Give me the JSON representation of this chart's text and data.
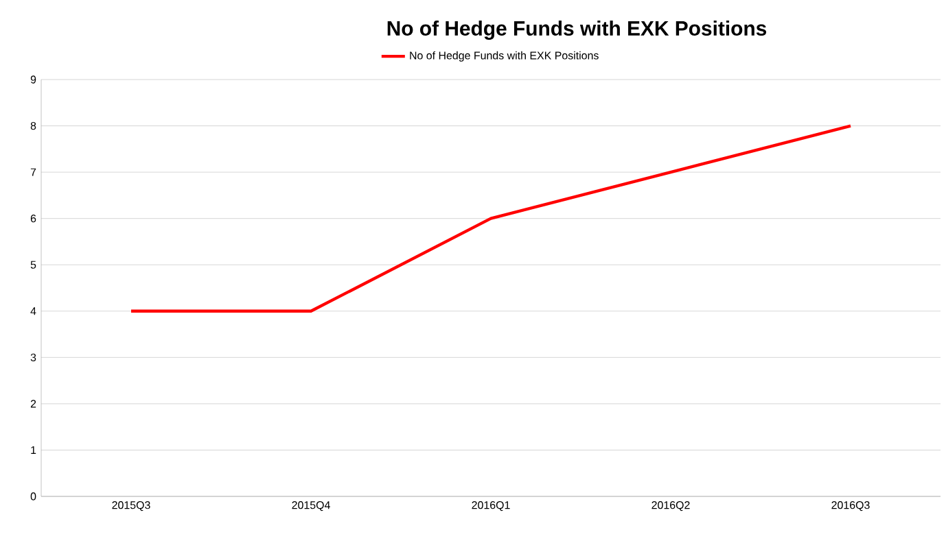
{
  "chart_data": {
    "type": "line",
    "title": "No of Hedge Funds with EXK Positions",
    "categories": [
      "2015Q3",
      "2015Q4",
      "2016Q1",
      "2016Q2",
      "2016Q3"
    ],
    "series": [
      {
        "name": "No of Hedge Funds with EXK Positions",
        "color": "#ff0000",
        "values": [
          4,
          4,
          6,
          7,
          8
        ]
      }
    ],
    "ylim": [
      0,
      9
    ],
    "yticks": [
      0,
      1,
      2,
      3,
      4,
      5,
      6,
      7,
      8,
      9
    ],
    "grid": "y",
    "legend": "top",
    "marker": "none"
  }
}
